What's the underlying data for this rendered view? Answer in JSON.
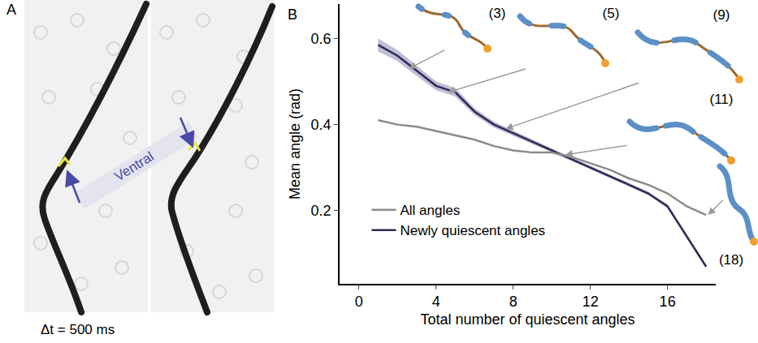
{
  "panel_a": {
    "label": "A",
    "annotation": "Ventral",
    "caption": "Δt = 500 ms"
  },
  "chart_data": {
    "panel_label": "B",
    "type": "line",
    "x_label": "Total number of quiescent angles",
    "y_label": "Mean angle (rad)",
    "x": [
      1,
      2,
      3,
      4,
      5,
      6,
      7,
      8,
      9,
      10,
      11,
      12,
      13,
      14,
      15,
      16,
      17,
      18
    ],
    "series": [
      {
        "name": "Newly quiescent angles",
        "color": "#2c2c54",
        "values": [
          0.585,
          0.56,
          0.525,
          0.49,
          0.475,
          0.43,
          0.4,
          0.38,
          0.36,
          0.34,
          0.32,
          0.3,
          0.28,
          0.26,
          0.24,
          0.21,
          0.14,
          0.07
        ],
        "error": [
          0.015,
          0.013,
          0.012,
          0.01,
          0.01,
          0.008,
          0.007,
          0.006,
          0.005,
          0.005,
          0.004,
          0.004,
          0.004,
          0.004,
          0.004,
          0.004,
          0.004,
          0.004
        ]
      },
      {
        "name": "All angles",
        "color": "#8a8a8a",
        "values": [
          0.41,
          0.4,
          0.395,
          0.385,
          0.375,
          0.365,
          0.35,
          0.34,
          0.335,
          0.335,
          0.325,
          0.31,
          0.295,
          0.275,
          0.26,
          0.24,
          0.21,
          0.19
        ]
      }
    ],
    "xlim": [
      -1,
      18.5
    ],
    "xticks": [
      0,
      4,
      8,
      12,
      16
    ],
    "ylim": [
      0.03,
      0.68
    ],
    "yticks": [
      0.2,
      0.4,
      0.6
    ],
    "grid": false,
    "legend": "lower left",
    "annotations": [
      {
        "text": "(3)",
        "x": 2.6,
        "y": 0.53
      },
      {
        "text": "(5)",
        "x": 4.6,
        "y": 0.475
      },
      {
        "text": "(9)",
        "x": 7.6,
        "y": 0.39
      },
      {
        "text": "(11)",
        "x": 10.7,
        "y": 0.33
      },
      {
        "text": "(18)",
        "x": 18.1,
        "y": 0.19
      }
    ]
  }
}
